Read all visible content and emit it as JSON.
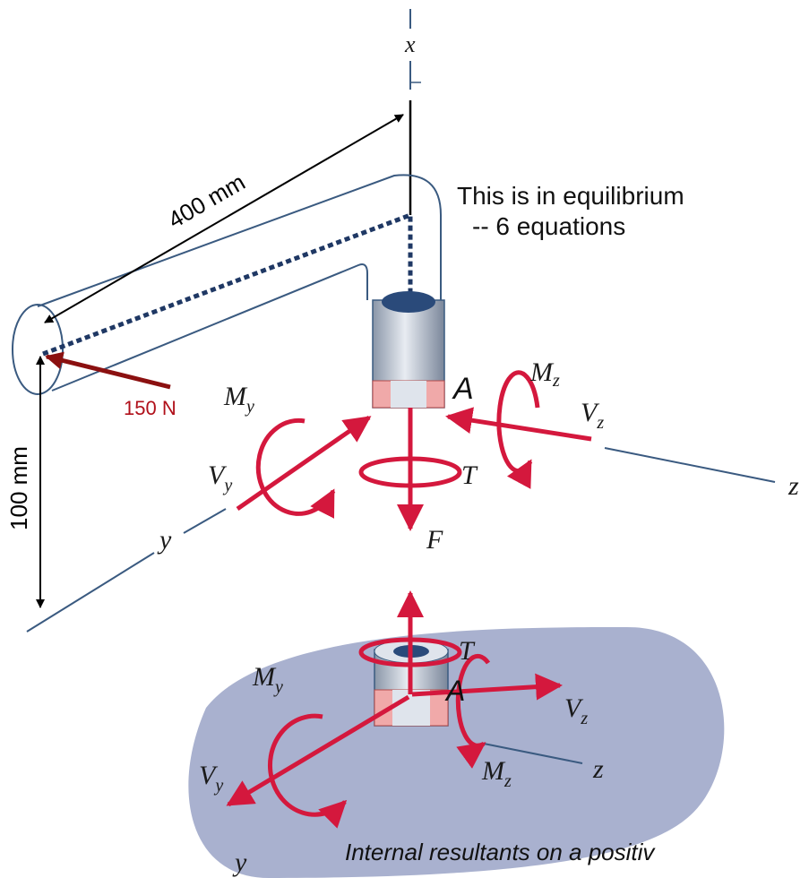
{
  "upper": {
    "axis_x": "x",
    "dim_length": "400 mm",
    "dim_height": "100 mm",
    "force": "150 N",
    "note_line1": "This is in equilibrium",
    "note_line2": "-- 6 equations",
    "point": "A",
    "m_z": {
      "symbol": "M",
      "subscript": "z"
    },
    "v_z": {
      "symbol": "V",
      "subscript": "z"
    },
    "m_y": {
      "symbol": "M",
      "subscript": "y"
    },
    "v_y": {
      "symbol": "V",
      "subscript": "y"
    },
    "torque": "T",
    "normal": "F",
    "axis_z": "z",
    "axis_y": "y"
  },
  "lower": {
    "torque": "T",
    "point": "A",
    "m_y": {
      "symbol": "M",
      "subscript": "y"
    },
    "v_z": {
      "symbol": "V",
      "subscript": "z"
    },
    "v_y": {
      "symbol": "V",
      "subscript": "y"
    },
    "m_z": {
      "symbol": "M",
      "subscript": "z"
    },
    "axis_z": "z",
    "axis_y": "y",
    "caption": "Internal resultants on a positiv"
  }
}
